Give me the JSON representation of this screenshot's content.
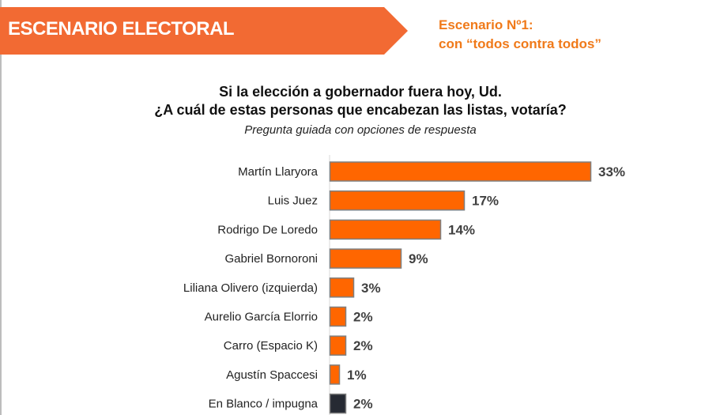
{
  "header": {
    "banner_title": "ESCENARIO ELECTORAL",
    "scenario_line1": "Escenario Nº1:",
    "scenario_line2": "con “todos contra todos”"
  },
  "question": {
    "line1": "Si la elección a gobernador fuera hoy, Ud.",
    "line2": "¿A cuál de estas personas que encabezan las listas, votaría?",
    "subtitle": "Pregunta guiada con opciones de respuesta"
  },
  "colors": {
    "banner": "#f26a33",
    "accent_text": "#f07a1a",
    "bar": "#ff6600",
    "bar_border": "#7f7f7f",
    "blank_bar": "#262a33",
    "value_text": "#404040"
  },
  "chart_data": {
    "type": "bar",
    "orientation": "horizontal",
    "title": "Si la elección a gobernador fuera hoy, Ud. ¿A cuál de estas personas que encabezan las listas, votaría?",
    "subtitle": "Pregunta guiada con opciones de respuesta",
    "xlabel": "",
    "ylabel": "",
    "unit": "%",
    "grid": false,
    "legend": "none",
    "categories": [
      "Martín Llaryora",
      "Luis Juez",
      "Rodrigo De Loredo",
      "Gabriel Bornoroni",
      "Liliana Olivero (izquierda)",
      "Aurelio García Elorrio",
      "Carro (Espacio K)",
      "Agustín Spaccesi",
      "En Blanco / impugna"
    ],
    "values": [
      33,
      17,
      14,
      9,
      3,
      2,
      2,
      1,
      2
    ],
    "value_labels": [
      "33%",
      "17%",
      "14%",
      "9%",
      "3%",
      "2%",
      "2%",
      "1%",
      "2%"
    ],
    "highlight": [
      "orange",
      "orange",
      "orange",
      "orange",
      "orange",
      "orange",
      "orange",
      "orange",
      "dark"
    ],
    "xlim": [
      0,
      35
    ]
  }
}
